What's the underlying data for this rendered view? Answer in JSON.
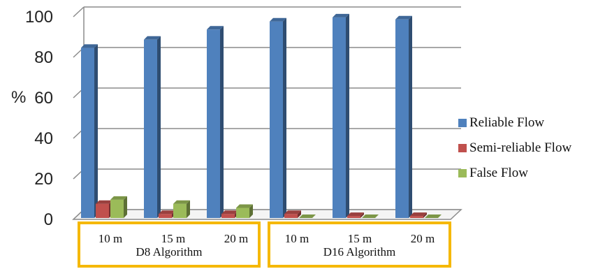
{
  "chart_data": {
    "type": "bar",
    "ylabel": "%",
    "ylim": [
      0,
      100
    ],
    "yticks": [
      "0",
      "20",
      "40",
      "60",
      "80",
      "100"
    ],
    "categories": [
      "10 m",
      "15 m",
      "20 m",
      "10 m",
      "15 m",
      "20 m"
    ],
    "groups": [
      {
        "label": "D8 Algorithm",
        "categories": [
          "10 m",
          "15 m",
          "20 m"
        ]
      },
      {
        "label": "D16 Algorithm",
        "categories": [
          "10 m",
          "15 m",
          "20 m"
        ]
      }
    ],
    "series": [
      {
        "name": "Reliable Flow",
        "color": "#4F81BD",
        "values": [
          84,
          88,
          93,
          97,
          99,
          98
        ]
      },
      {
        "name": "Semi-reliable Flow",
        "color": "#C0504D",
        "values": [
          7,
          2,
          2,
          2,
          1,
          1
        ]
      },
      {
        "name": "False Flow",
        "color": "#9BBB59",
        "values": [
          9,
          7,
          5,
          0,
          0,
          0
        ]
      }
    ],
    "grid": true,
    "legend_position": "right",
    "group_box_color": "#F5B800"
  }
}
